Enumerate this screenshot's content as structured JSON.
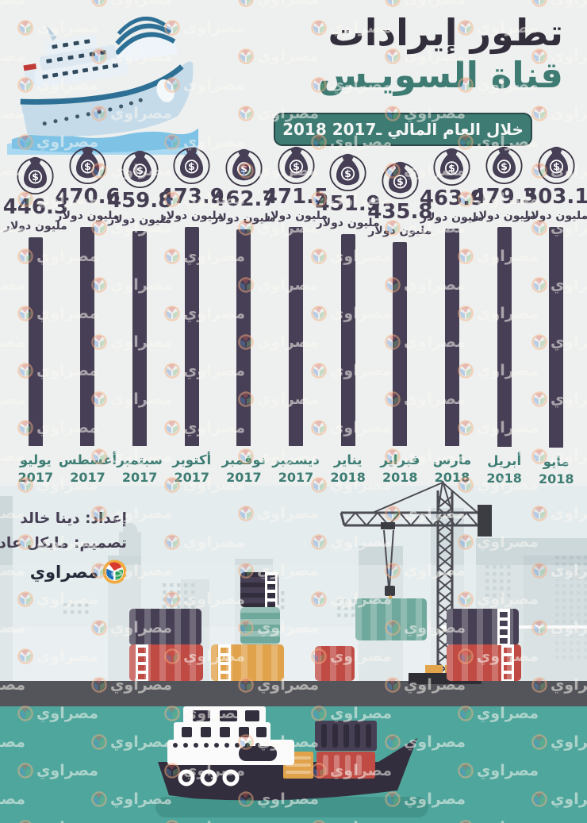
{
  "header": {
    "title_line1": "تطور إيرادات",
    "title_line2": "قناة السويـس",
    "banner": "خلال العام المالي ـ2017 2018"
  },
  "chart_data": {
    "type": "bar",
    "title": "تطور إيرادات قناة السويس خلال العام المالي 2017 - 2018",
    "unit_label": "مليون دولار",
    "currency_symbol": "$",
    "ylabel": "",
    "ylim": [
      0,
      520
    ],
    "legend": "none",
    "grid": false,
    "categories": [
      "يوليو 2017",
      "أغسطس 2017",
      "سبتمبر 2017",
      "أكتوبر 2017",
      "نوفمبر 2017",
      "ديسمبر 2017",
      "يناير 2018",
      "فبراير 2018",
      "مارس 2018",
      "أبريل 2018",
      "مايو 2018"
    ],
    "values": [
      446.3,
      470.6,
      459.8,
      473.9,
      462.7,
      471.5,
      451.9,
      435.8,
      463.9,
      479.3,
      503.1
    ],
    "bars": [
      {
        "month": "يوليو",
        "year": "2017",
        "value": 446.3
      },
      {
        "month": "أغسطس",
        "year": "2017",
        "value": 470.6
      },
      {
        "month": "سبتمبر",
        "year": "2017",
        "value": 459.8
      },
      {
        "month": "أكتوبر",
        "year": "2017",
        "value": 473.9
      },
      {
        "month": "نوفمبر",
        "year": "2017",
        "value": 462.7
      },
      {
        "month": "ديسمبر",
        "year": "2017",
        "value": 471.5
      },
      {
        "month": "يناير",
        "year": "2018",
        "value": 451.9
      },
      {
        "month": "فبراير",
        "year": "2018",
        "value": 435.8
      },
      {
        "month": "مارس",
        "year": "2018",
        "value": 463.9
      },
      {
        "month": "أبريل",
        "year": "2018",
        "value": 479.3
      },
      {
        "month": "مايو",
        "year": "2018",
        "value": 503.1
      }
    ]
  },
  "credits": {
    "prepared": "إعداد: دينا خالد",
    "designed": "تصميم: مايكل عادل",
    "brand": "مصراوي"
  },
  "watermark": {
    "text": "مصراوي"
  },
  "icons": {
    "money_bag": "money-bag-icon",
    "brand_logo": "masrawy-logo-icon",
    "cruise_ship": "cruise-ship-illustration",
    "cargo_ship": "cargo-ship-illustration",
    "crane": "harbor-crane-illustration"
  },
  "colors": {
    "accent_teal": "#3e7b73",
    "bar_purple": "#473f55",
    "title_dark": "#332e3b",
    "water_teal": "#4fa69c",
    "dock_gray": "#54555a",
    "container_red": "#bf4b44",
    "container_orange": "#e0a24a",
    "container_teal": "#6fa89d",
    "container_purple": "#474055",
    "logo_orange": "#f2a93b"
  }
}
